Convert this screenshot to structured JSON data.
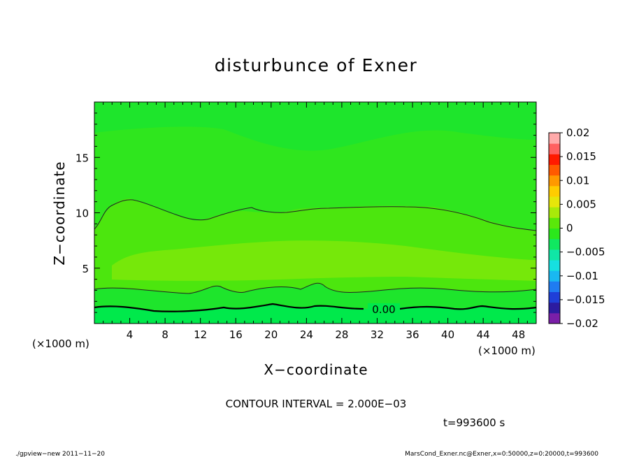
{
  "chart_data": {
    "type": "heatmap",
    "title": "disturbunce of Exner",
    "xlabel": "X−coordinate",
    "ylabel": "Z−coordinate",
    "x_unit_left": "(×1000 m)",
    "x_unit_right": "(×1000 m)",
    "xlim": [
      0,
      50
    ],
    "ylim": [
      0,
      20
    ],
    "x_ticks": [
      "4",
      "8",
      "12",
      "16",
      "20",
      "24",
      "28",
      "32",
      "36",
      "40",
      "44",
      "48"
    ],
    "y_ticks": [
      "5",
      "10",
      "15"
    ],
    "x_tick_values": [
      4,
      8,
      12,
      16,
      20,
      24,
      28,
      32,
      36,
      40,
      44,
      48
    ],
    "y_tick_values": [
      5,
      10,
      15
    ],
    "contour_interval": "CONTOUR INTERVAL = 2.000E−03",
    "time_label": "t=993600 s",
    "contour_label": "0.00",
    "colorbar": {
      "labels": [
        "0.02",
        "0.015",
        "0.01",
        "0.005",
        "0",
        "−0.005",
        "−0.01",
        "−0.015",
        "−0.02"
      ],
      "label_values": [
        0.02,
        0.015,
        0.01,
        0.005,
        0,
        -0.005,
        -0.01,
        -0.015,
        -0.02
      ],
      "range": [
        -0.02,
        0.02
      ],
      "colors": [
        "#7a1fa8",
        "#2c1ba0",
        "#1f3fd8",
        "#1f7cf2",
        "#19b8f2",
        "#16e0e0",
        "#10e6a6",
        "#10e860",
        "#2be81c",
        "#5ae80a",
        "#a8ea0a",
        "#e6e60a",
        "#ffcc00",
        "#ff9900",
        "#ff5a00",
        "#ff1a00",
        "#ff6060",
        "#ffaaaa"
      ]
    },
    "regions": [
      {
        "value_band": "-0.002 to 0",
        "color": "#00e94b",
        "z_range": [
          0,
          1.5
        ]
      },
      {
        "value_band": "0 to 0.002",
        "color": "#1ee52c",
        "z_range": [
          1.5,
          3
        ]
      },
      {
        "value_band": "0.002 to 0.004",
        "color": "#4ce60e",
        "z_range": [
          3,
          10
        ]
      },
      {
        "value_band": "0.004 to 0.006",
        "color": "#76e80a",
        "z_range": [
          4.5,
          7.5
        ]
      }
    ]
  },
  "footer": {
    "left": "./gpview−new   2011−11−20",
    "right": "MarsCond_Exner.nc@Exner,x=0:50000,z=0:20000,t=993600"
  }
}
